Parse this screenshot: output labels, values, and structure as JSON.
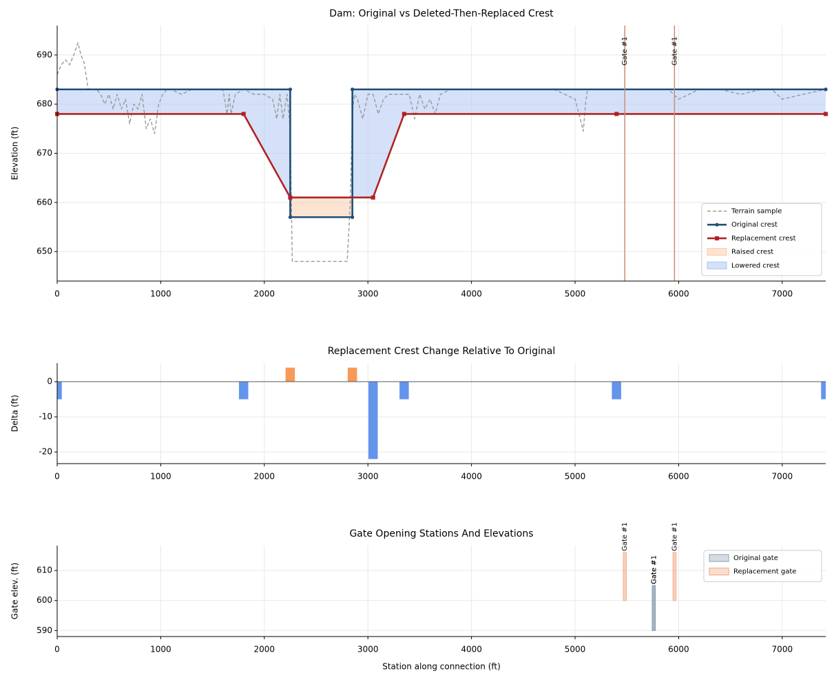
{
  "chart_data": [
    {
      "type": "line",
      "title": "Dam: Original vs Deleted-Then-Replaced Crest",
      "ylabel": "Elevation (ft)",
      "xlim": [
        0,
        7420
      ],
      "xticks": [
        0,
        1000,
        2000,
        3000,
        4000,
        5000,
        6000,
        7000
      ],
      "ylim": [
        644,
        696
      ],
      "yticks": [
        650,
        660,
        670,
        680,
        690
      ],
      "grid": true,
      "legend": "lower right",
      "series": [
        {
          "name": "Terrain sample",
          "color": "#999999",
          "style": "dashed",
          "x": [
            0,
            40,
            80,
            120,
            160,
            200,
            230,
            260,
            300,
            340,
            380,
            420,
            460,
            500,
            540,
            580,
            620,
            660,
            700,
            740,
            780,
            820,
            860,
            900,
            940,
            980,
            1020,
            1060,
            1100,
            1200,
            1300,
            1400,
            1500,
            1600,
            1640,
            1660,
            1680,
            1720,
            1800,
            1900,
            2000,
            2080,
            2120,
            2150,
            2180,
            2220,
            2250,
            2270,
            2300,
            2400,
            2500,
            2600,
            2700,
            2800,
            2830,
            2850,
            2870,
            2900,
            2950,
            3000,
            3050,
            3100,
            3150,
            3200,
            3300,
            3400,
            3450,
            3500,
            3550,
            3600,
            3650,
            3700,
            3800,
            3900,
            4000,
            4200,
            4400,
            4600,
            4800,
            4900,
            5000,
            5050,
            5080,
            5100,
            5120,
            5200,
            5300,
            5500,
            5700,
            5900,
            6000,
            6200,
            6400,
            6600,
            6800,
            6900,
            7000,
            7200,
            7420
          ],
          "values": [
            686,
            688,
            689,
            688,
            690,
            692.5,
            690,
            688.5,
            683,
            683,
            683,
            682,
            680,
            682,
            679,
            682,
            679,
            681,
            676,
            680,
            679,
            682,
            675,
            677,
            674,
            680,
            682,
            683,
            683,
            682,
            683,
            683,
            683,
            683,
            678,
            682,
            678,
            682,
            683,
            682,
            682,
            681,
            677,
            682,
            677,
            682,
            675,
            648,
            648,
            648,
            648,
            648,
            648,
            648,
            660,
            678,
            682,
            681,
            677,
            682,
            682,
            678,
            681,
            682,
            682,
            682,
            677,
            682,
            679,
            681,
            678,
            682,
            683,
            683,
            683,
            683,
            683,
            683,
            683,
            682,
            681,
            677,
            674.5,
            680,
            683,
            683,
            683,
            683,
            683,
            683,
            681,
            683,
            683,
            682,
            683,
            683,
            681,
            682,
            683
          ]
        },
        {
          "name": "Original crest",
          "color": "#1f4e79",
          "marker": "circle",
          "x": [
            0,
            2250,
            2250,
            2850,
            2850,
            7420
          ],
          "values": [
            683,
            683,
            657,
            657,
            683,
            683
          ]
        },
        {
          "name": "Replacement crest",
          "color": "#b22222",
          "marker": "square",
          "x": [
            0,
            1800,
            2250,
            3050,
            3350,
            5400,
            7420
          ],
          "values": [
            678,
            678,
            661,
            661,
            678,
            678,
            678
          ]
        }
      ],
      "fills": [
        {
          "name": "Raised crest",
          "color": "#fbc9a6"
        },
        {
          "name": "Lowered crest",
          "color": "#a9c3f4"
        }
      ],
      "gates": {
        "x": [
          5480,
          5960
        ],
        "labels": [
          "Gate #1",
          "Gate #1"
        ],
        "color": "#c98c74",
        "label_color": "#a0401a"
      }
    },
    {
      "type": "bar",
      "title": "Replacement Crest Change Relative To Original",
      "ylabel": "Delta (ft)",
      "xlim": [
        0,
        7420
      ],
      "xticks": [
        0,
        1000,
        2000,
        3000,
        4000,
        5000,
        6000,
        7000
      ],
      "ylim": [
        -23.3,
        5.3
      ],
      "yticks": [
        -20,
        -10,
        0
      ],
      "grid": true,
      "x": [
        0,
        1800,
        2250,
        2850,
        3050,
        3350,
        5400,
        7420
      ],
      "values": [
        -5,
        -5,
        4,
        4,
        -22,
        -5,
        -5,
        -5
      ],
      "positive_color": "#f79a57",
      "negative_color": "#6495ed"
    },
    {
      "type": "range",
      "title": "Gate Opening Stations And Elevations",
      "ylabel": "Gate elev. (ft)",
      "xlabel": "Station along connection (ft)",
      "xlim": [
        0,
        7420
      ],
      "xticks": [
        0,
        1000,
        2000,
        3000,
        4000,
        5000,
        6000,
        7000
      ],
      "ylim": [
        588,
        618.3
      ],
      "yticks": [
        590,
        600,
        610
      ],
      "grid": true,
      "legend": "upper right",
      "series": [
        {
          "name": "Original gate",
          "color": "#8c9bb0",
          "label_color": "#4a5a70",
          "x": [
            5760,
            5760
          ],
          "base": [
            590,
            590
          ],
          "values": [
            605,
            605
          ],
          "labels": [
            "Gate #1",
            "Gate #1"
          ]
        },
        {
          "name": "Replacement gate",
          "color": "#f0a27c",
          "label_color": "#a0401a",
          "x": [
            5480,
            5960
          ],
          "base": [
            600,
            600
          ],
          "values": [
            616,
            616
          ],
          "labels": [
            "Gate #1",
            "Gate #1"
          ]
        }
      ]
    }
  ]
}
